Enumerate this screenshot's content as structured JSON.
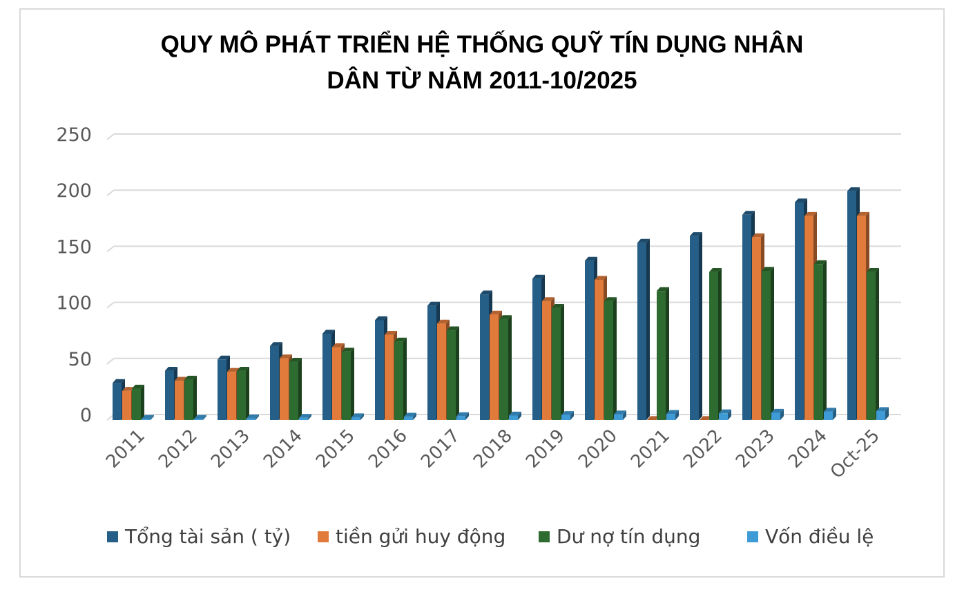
{
  "chart_data": {
    "type": "bar",
    "title_line1": "QUY MÔ PHÁT TRIỂN HỆ THỐNG QUỸ TÍN DỤNG NHÂN",
    "title_line2": "DÂN TỪ NĂM 2011-10/2025",
    "categories": [
      "2011",
      "2012",
      "2013",
      "2014",
      "2015",
      "2016",
      "2017",
      "2018",
      "2019",
      "2020",
      "2021",
      "2022",
      "2023",
      "2024",
      "Oct-25"
    ],
    "ylim": [
      0,
      250
    ],
    "yticks": [
      0,
      50,
      100,
      150,
      200,
      250
    ],
    "grid": true,
    "legend_position": "bottom",
    "series": [
      {
        "name": "Tổng tài sản ( tỷ)",
        "color": "#255e86",
        "values": [
          33,
          44,
          54,
          66,
          77,
          89,
          102,
          112,
          126,
          142,
          158,
          164,
          183,
          194,
          204
        ]
      },
      {
        "name": "tiền gửi huy động",
        "color": "#e07b3c",
        "values": [
          26,
          35,
          43,
          55,
          65,
          76,
          86,
          94,
          106,
          125,
          0,
          0,
          163,
          182,
          182
        ]
      },
      {
        "name": "Dư nợ tín dụng",
        "color": "#2e6b30",
        "values": [
          28,
          36,
          44,
          52,
          61,
          70,
          80,
          90,
          100,
          106,
          115,
          132,
          133,
          139,
          132
        ]
      },
      {
        "name": "Vốn điều lệ",
        "color": "#3f9bd6",
        "values": [
          1,
          1,
          1.5,
          2,
          2.5,
          3,
          3.5,
          4,
          4.5,
          5,
          5.5,
          6,
          6.5,
          7.5,
          8
        ]
      }
    ]
  }
}
